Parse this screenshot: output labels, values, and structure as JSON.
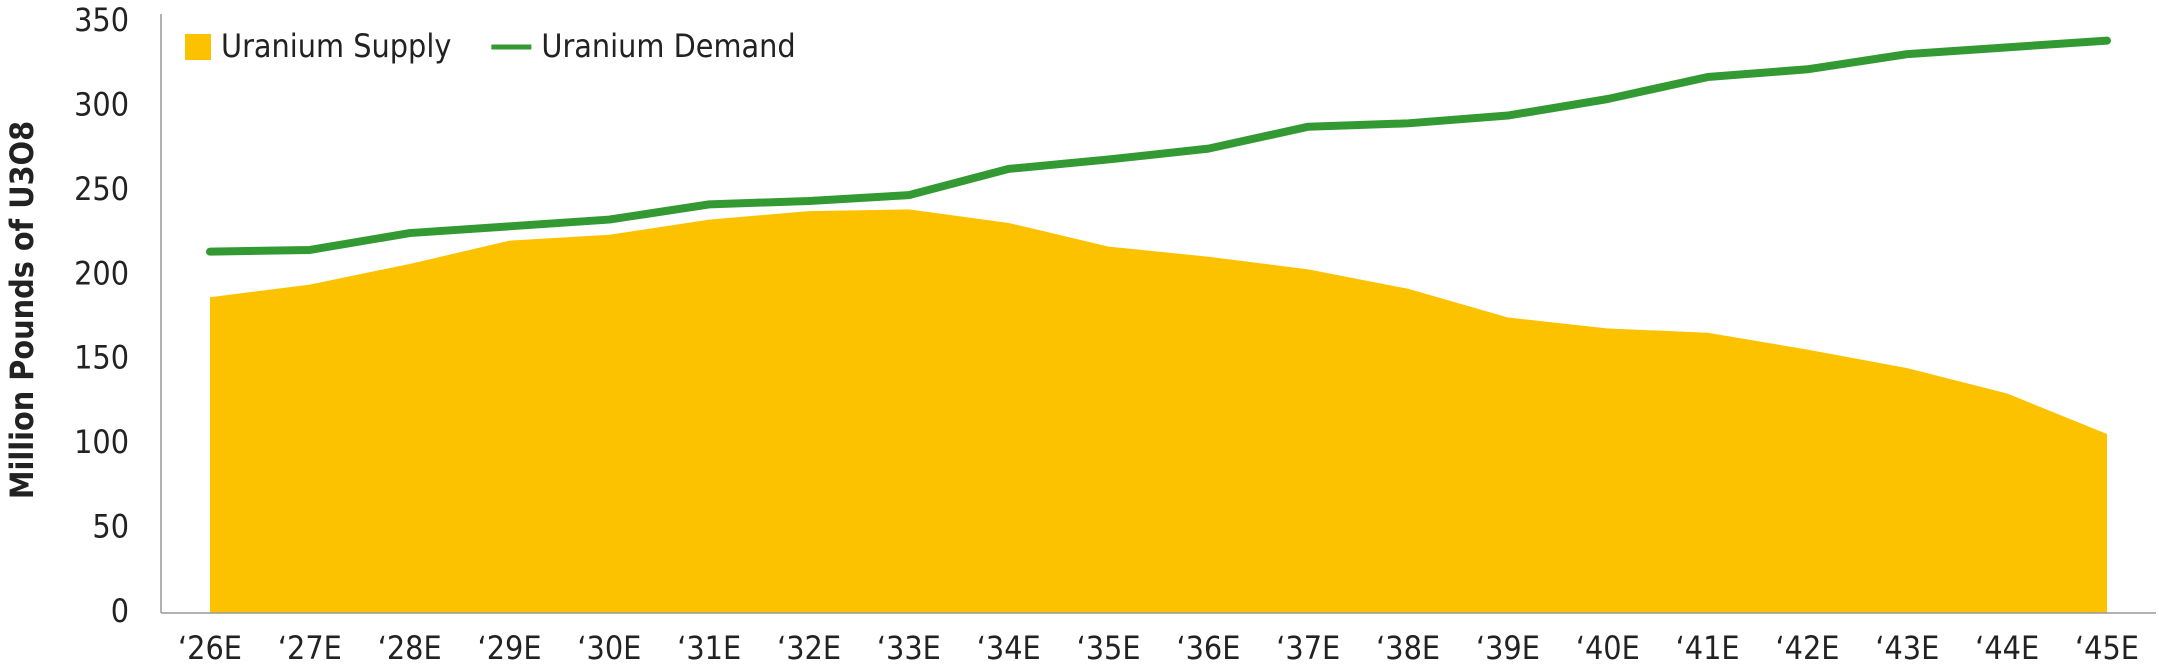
{
  "chart_data": {
    "type": "line",
    "y_label": "Million Pounds of U3O8",
    "categories": [
      "‘26E",
      "‘27E",
      "‘28E",
      "‘29E",
      "‘30E",
      "‘31E",
      "‘32E",
      "‘33E",
      "‘34E",
      "‘35E",
      "‘36E",
      "‘37E",
      "‘38E",
      "‘39E",
      "‘40E",
      "‘41E",
      "‘42E",
      "‘43E",
      "‘44E",
      "‘45E"
    ],
    "series": [
      {
        "name": "Uranium Supply",
        "type": "area",
        "color": "#fcc200",
        "values": [
          187,
          194.5,
          206.7,
          220.5,
          224,
          233,
          238,
          239,
          231,
          217,
          211,
          203.5,
          192,
          175,
          168.5,
          166,
          156,
          145,
          130,
          106
        ]
      },
      {
        "name": "Uranium Demand",
        "type": "line",
        "color": "#339933",
        "values": [
          214,
          215,
          225,
          229,
          233,
          242,
          244,
          247.5,
          263,
          268.6,
          275,
          288,
          290,
          294.6,
          304.4,
          317.4,
          322,
          331,
          335,
          339
        ]
      }
    ],
    "ylim": [
      0,
      350
    ],
    "yticks": [
      0,
      50,
      100,
      150,
      200,
      250,
      300,
      350
    ],
    "grid": false,
    "legend": "top-left"
  }
}
